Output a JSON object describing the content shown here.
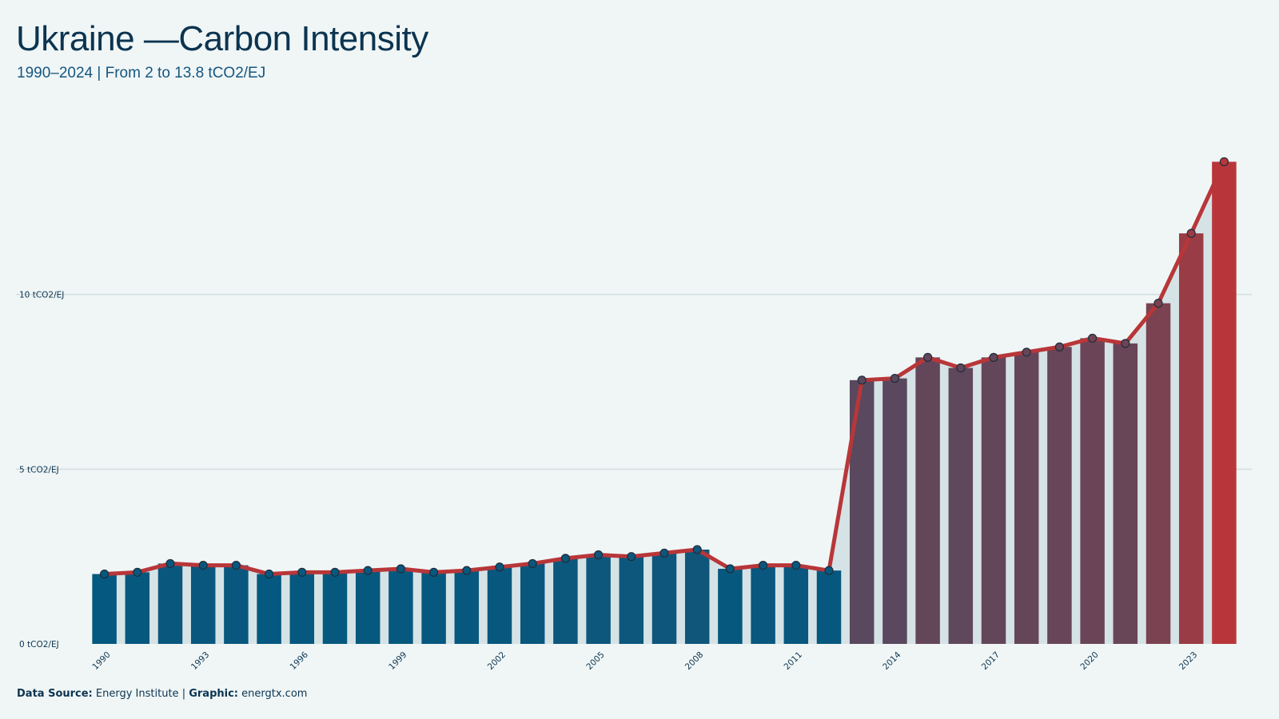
{
  "header": {
    "title": "Ukraine —Carbon Intensity",
    "subtitle": "1990–2024 | From 2 to 13.8 tCO2/EJ"
  },
  "footer": {
    "source_label": "Data Source:",
    "source_value": "Energy Institute",
    "separator": "|",
    "graphic_label": "Graphic:",
    "graphic_value": "energtx.com"
  },
  "colors": {
    "background": "#f0f6f6",
    "low": "#05587f",
    "high": "#b83639",
    "line": "#b83639",
    "area": "#d6e3e6",
    "grid": "#d3dde0",
    "text": "#0c3450"
  },
  "chart_data": {
    "type": "bar",
    "x": [
      1990,
      1991,
      1992,
      1993,
      1994,
      1995,
      1996,
      1997,
      1998,
      1999,
      2000,
      2001,
      2002,
      2003,
      2004,
      2005,
      2006,
      2007,
      2008,
      2009,
      2010,
      2011,
      2012,
      2013,
      2014,
      2015,
      2016,
      2017,
      2018,
      2019,
      2020,
      2021,
      2022,
      2023,
      2024
    ],
    "values": [
      2.0,
      2.05,
      2.3,
      2.25,
      2.25,
      2.0,
      2.05,
      2.05,
      2.1,
      2.15,
      2.05,
      2.1,
      2.2,
      2.3,
      2.45,
      2.55,
      2.5,
      2.6,
      2.7,
      2.15,
      2.25,
      2.25,
      2.1,
      7.55,
      7.6,
      8.2,
      7.9,
      8.2,
      8.35,
      8.5,
      8.75,
      8.6,
      9.75,
      11.75,
      13.8
    ],
    "overlay_line": true,
    "y_ticks": [
      0,
      5,
      10
    ],
    "y_tick_labels": [
      "0 tCO2/EJ",
      "5 tCO2/EJ",
      "10 tCO2/EJ"
    ],
    "x_tick_labels": [
      "1990",
      "1993",
      "1996",
      "1999",
      "2002",
      "2005",
      "2008",
      "2011",
      "2014",
      "2017",
      "2020",
      "2023"
    ],
    "ylim": [
      0,
      15
    ],
    "grid": true,
    "legend": "none"
  }
}
